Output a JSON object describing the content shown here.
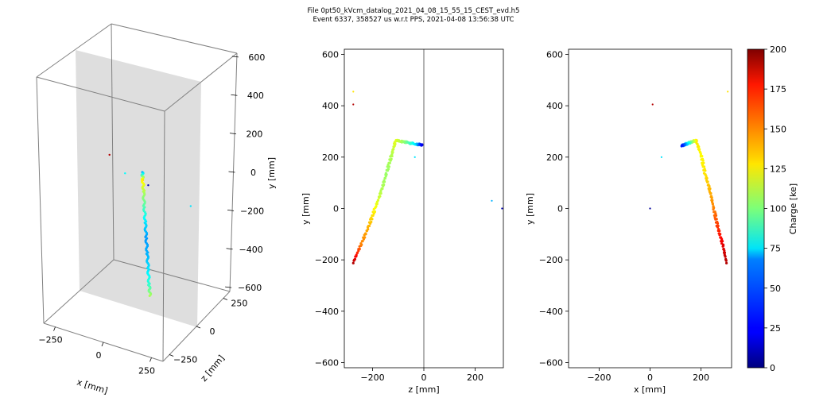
{
  "figure": {
    "title_line1": "File 0pt50_kVcm_datalog_2021_04_08_15_55_15_CEST_evd.h5",
    "title_line2": "Event 6337, 358527 us w.r.t PPS, 2021-04-08 13:56:38 UTC"
  },
  "chart_data": [
    {
      "type": "scatter",
      "panel": "3d",
      "xlabel": "x [mm]",
      "ylabel": "z [mm]",
      "zlabel": "y [mm]",
      "x_ticks": [
        "−250",
        "0",
        "250"
      ],
      "z_ticks": [
        "−250",
        "0",
        "250"
      ],
      "y_ticks": [
        "600",
        "400",
        "200",
        "0",
        "−200",
        "−400",
        "−600"
      ],
      "xlim": [
        -310,
        310
      ],
      "zlim": [
        -310,
        310
      ],
      "ylim": [
        -620,
        620
      ],
      "track": [
        {
          "x": 10,
          "y": 140,
          "z": 0,
          "charge": 60
        },
        {
          "x": 12,
          "y": 100,
          "z": 0,
          "charge": 130
        },
        {
          "x": 15,
          "y": 40,
          "z": 0,
          "charge": 110
        },
        {
          "x": 18,
          "y": -40,
          "z": 0,
          "charge": 90
        },
        {
          "x": 22,
          "y": -120,
          "z": 0,
          "charge": 70
        },
        {
          "x": 26,
          "y": -200,
          "z": 0,
          "charge": 55
        },
        {
          "x": 30,
          "y": -280,
          "z": 0,
          "charge": 60
        },
        {
          "x": 34,
          "y": -360,
          "z": 0,
          "charge": 70
        },
        {
          "x": 38,
          "y": -440,
          "z": 0,
          "charge": 85
        },
        {
          "x": 42,
          "y": -500,
          "z": 0,
          "charge": 110
        }
      ],
      "isolated_hits": [
        {
          "x": -160,
          "y": 185,
          "z": 0,
          "charge": 190
        },
        {
          "x": 40,
          "y": 80,
          "z": 0,
          "charge": 10
        },
        {
          "x": 260,
          "y": 30,
          "z": 0,
          "charge": 70
        },
        {
          "x": -80,
          "y": 110,
          "z": 0,
          "charge": 75
        }
      ],
      "grid": false
    },
    {
      "type": "scatter",
      "panel": "zy",
      "xlabel": "z [mm]",
      "ylabel": "y [mm]",
      "xlim": [
        -310,
        310
      ],
      "ylim": [
        -620,
        620
      ],
      "x_ticks": [
        -200,
        0,
        200
      ],
      "y_ticks": [
        600,
        400,
        200,
        0,
        -200,
        -400,
        -600
      ],
      "vertical_line_at": 0,
      "track": [
        {
          "z": -275,
          "y": -210,
          "charge": 190
        },
        {
          "z": -245,
          "y": -140,
          "charge": 150
        },
        {
          "z": -215,
          "y": -70,
          "charge": 140
        },
        {
          "z": -190,
          "y": 0,
          "charge": 125
        },
        {
          "z": -165,
          "y": 70,
          "charge": 110
        },
        {
          "z": -145,
          "y": 140,
          "charge": 105
        },
        {
          "z": -125,
          "y": 210,
          "charge": 110
        },
        {
          "z": -110,
          "y": 265,
          "charge": 120
        },
        {
          "z": -70,
          "y": 258,
          "charge": 100
        },
        {
          "z": -30,
          "y": 250,
          "charge": 70
        },
        {
          "z": -5,
          "y": 248,
          "charge": 20
        }
      ],
      "isolated_hits": [
        {
          "z": -275,
          "y": 405,
          "charge": 190
        },
        {
          "z": -275,
          "y": 455,
          "charge": 130
        },
        {
          "z": 265,
          "y": 30,
          "charge": 60
        },
        {
          "z": 305,
          "y": 0,
          "charge": 10
        },
        {
          "z": -35,
          "y": 200,
          "charge": 70
        }
      ],
      "grid": false
    },
    {
      "type": "scatter",
      "panel": "xy",
      "xlabel": "x [mm]",
      "ylabel": "y [mm]",
      "xlim": [
        -320,
        320
      ],
      "ylim": [
        -620,
        620
      ],
      "x_ticks": [
        -200,
        0,
        200
      ],
      "y_ticks": [
        600,
        400,
        200,
        0,
        -200,
        -400,
        -600
      ],
      "track": [
        {
          "x": 300,
          "y": -210,
          "charge": 190
        },
        {
          "x": 285,
          "y": -140,
          "charge": 180
        },
        {
          "x": 265,
          "y": -70,
          "charge": 165
        },
        {
          "x": 250,
          "y": 0,
          "charge": 150
        },
        {
          "x": 235,
          "y": 70,
          "charge": 140
        },
        {
          "x": 215,
          "y": 140,
          "charge": 130
        },
        {
          "x": 200,
          "y": 210,
          "charge": 125
        },
        {
          "x": 180,
          "y": 265,
          "charge": 130
        },
        {
          "x": 160,
          "y": 258,
          "charge": 100
        },
        {
          "x": 140,
          "y": 250,
          "charge": 60
        },
        {
          "x": 125,
          "y": 245,
          "charge": 30
        }
      ],
      "isolated_hits": [
        {
          "x": 10,
          "y": 405,
          "charge": 190
        },
        {
          "x": 305,
          "y": 455,
          "charge": 130
        },
        {
          "x": 45,
          "y": 200,
          "charge": 70
        },
        {
          "x": 0,
          "y": 0,
          "charge": 5
        }
      ],
      "grid": false
    }
  ],
  "colorbar": {
    "label": "Charge [ke]",
    "min": 0,
    "max": 200,
    "ticks": [
      0,
      25,
      50,
      75,
      100,
      125,
      150,
      175,
      200
    ],
    "colormap": "jet"
  }
}
